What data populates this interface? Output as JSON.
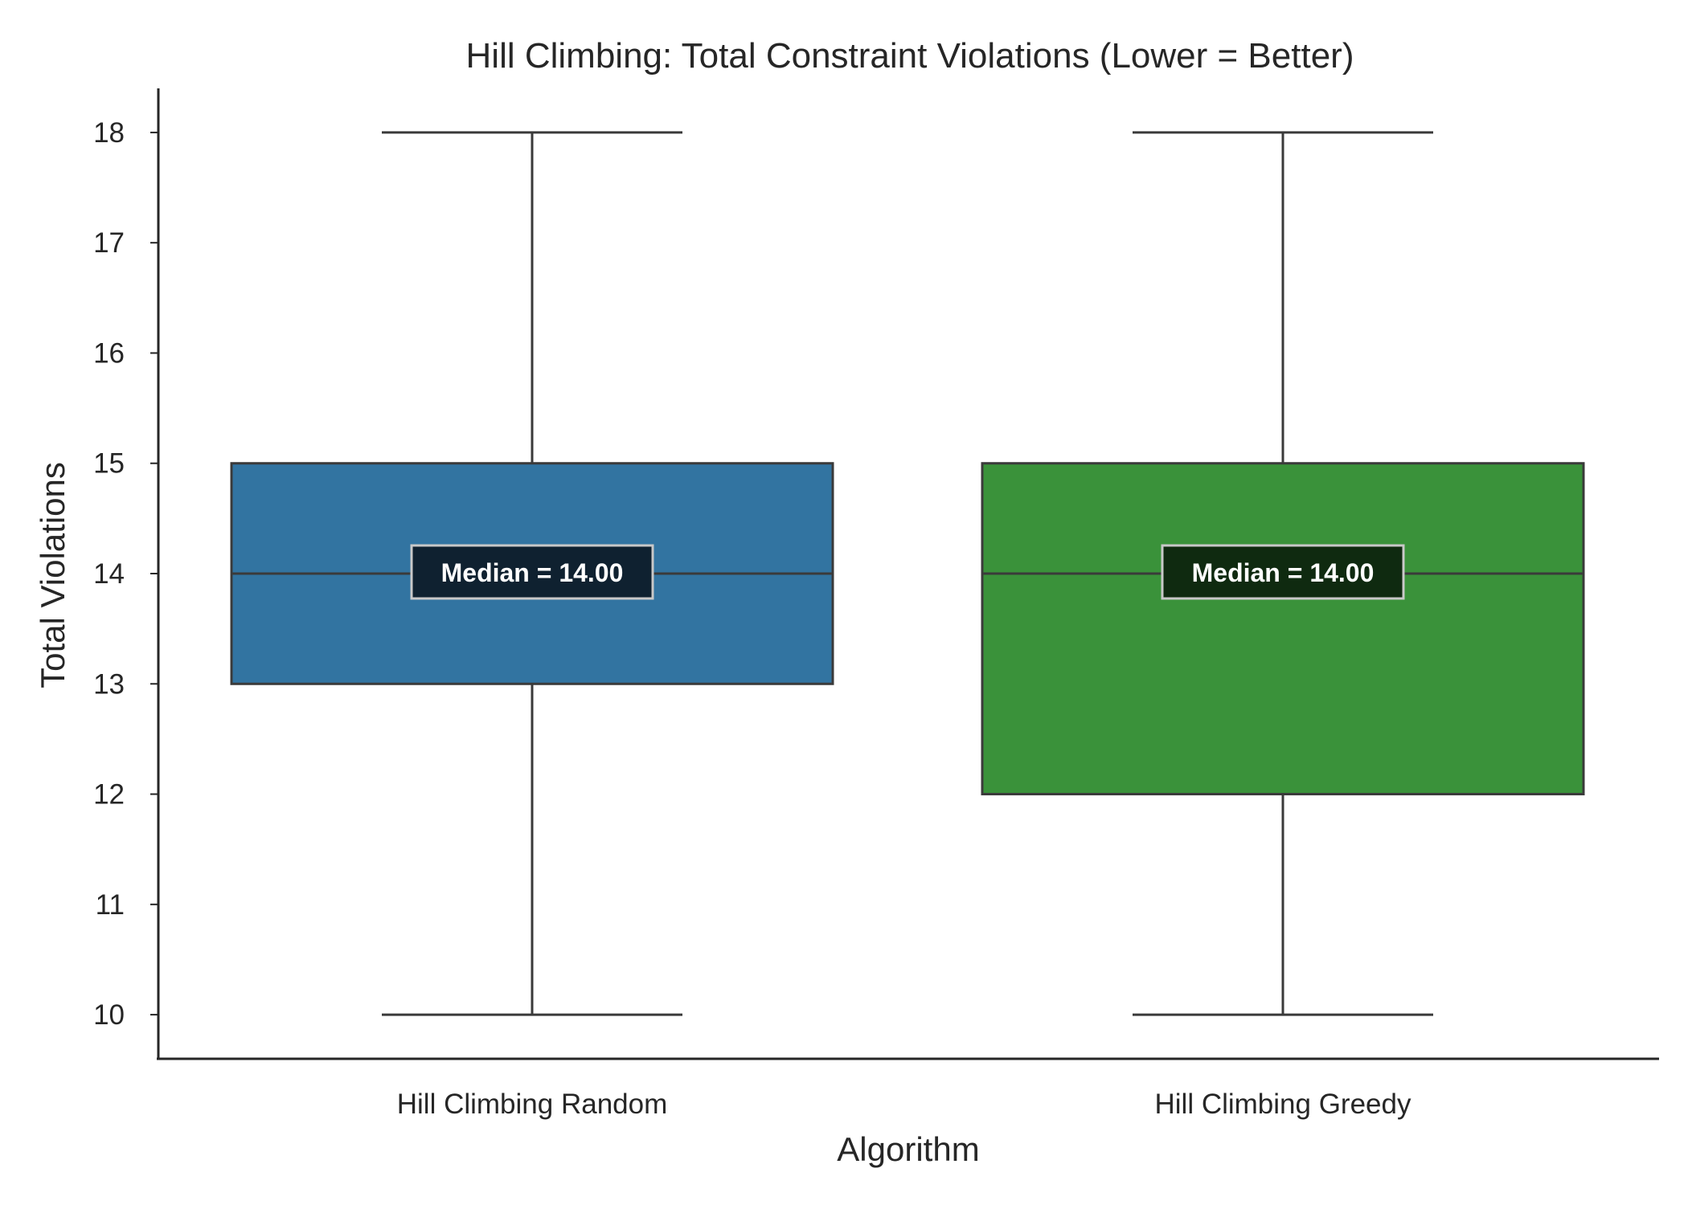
{
  "chart_data": {
    "type": "box",
    "title": "Hill Climbing: Total Constraint Violations (Lower = Better)",
    "xlabel": "Algorithm",
    "ylabel": "Total Violations",
    "ylim": [
      9.6,
      18.4
    ],
    "yticks": [
      10,
      11,
      12,
      13,
      14,
      15,
      16,
      17,
      18
    ],
    "grid": false,
    "categories": [
      "Hill Climbing Random",
      "Hill Climbing Greedy"
    ],
    "boxes": [
      {
        "category": "Hill Climbing Random",
        "min": 10,
        "q1": 13,
        "median": 14,
        "q3": 15,
        "max": 18,
        "color": "#3274a1",
        "label_bg": "#0f2130",
        "median_label": "Median = 14.00"
      },
      {
        "category": "Hill Climbing Greedy",
        "min": 10,
        "q1": 12,
        "median": 14,
        "q3": 15,
        "max": 18,
        "color": "#3a923a",
        "label_bg": "#0f2a10",
        "median_label": "Median = 14.00"
      }
    ]
  }
}
